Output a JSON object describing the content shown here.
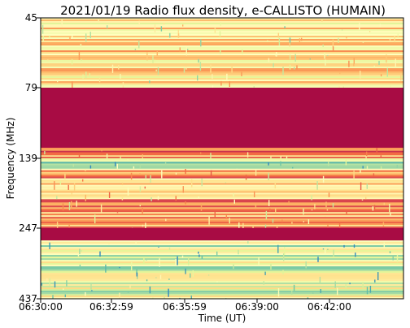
{
  "chart_data": {
    "type": "heatmap",
    "title": "2021/01/19  Radio flux density, e-CALLISTO (HUMAIN)",
    "xlabel": "Time (UT)",
    "ylabel": "Frequency (MHz)",
    "x_ticks": [
      "06:30:00",
      "06:32:59",
      "06:35:59",
      "06:39:00",
      "06:42:00"
    ],
    "y_ticks": [
      "45",
      "79",
      "139",
      "247",
      "437"
    ],
    "x_range": [
      "06:30:00",
      "06:44:59"
    ],
    "y_range_mhz": [
      45,
      437
    ],
    "y_axis_direction": "frequency increases downward",
    "colormap": "Spectral",
    "colormap_stops": [
      "#9e0142",
      "#d53e4f",
      "#f46d43",
      "#fdae61",
      "#fee08b",
      "#ffffbf",
      "#e6f598",
      "#abdda4",
      "#66c2a5",
      "#3288bd"
    ],
    "bands": [
      {
        "f_from": 45,
        "f_to": 79,
        "level": 0.45,
        "description": "mixed red/orange with bright streaks"
      },
      {
        "f_from": 79,
        "f_to": 130,
        "level": 0.02,
        "description": "uniform dark red"
      },
      {
        "f_from": 130,
        "f_to": 139,
        "level": 0.3,
        "description": "red/orange streaks"
      },
      {
        "f_from": 139,
        "f_to": 155,
        "level": 0.7,
        "description": "bright yellow/green band"
      },
      {
        "f_from": 155,
        "f_to": 247,
        "level": 0.35,
        "description": "red with orange streaks"
      },
      {
        "f_from": 247,
        "f_to": 280,
        "level": 0.02,
        "description": "uniform dark red"
      },
      {
        "f_from": 280,
        "f_to": 437,
        "level": 0.65,
        "description": "bright band with cyan/blue bursts"
      }
    ]
  }
}
